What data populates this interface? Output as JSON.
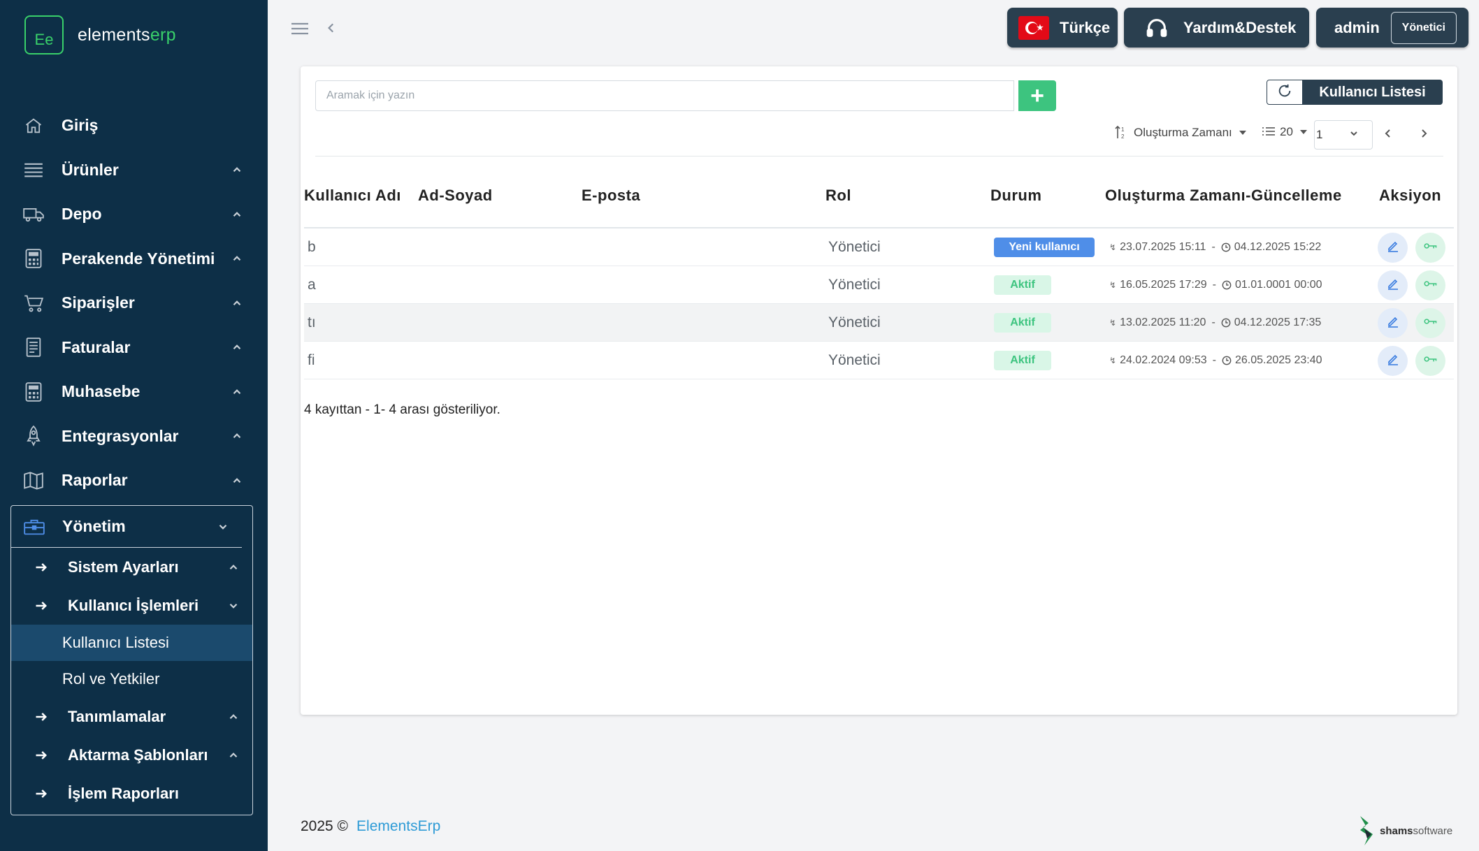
{
  "brand": {
    "logo_initials": "Ee",
    "name_main": "elements",
    "name_accent": "erp"
  },
  "sidebar": {
    "items": [
      {
        "label": "Giriş",
        "icon": "home-icon"
      },
      {
        "label": "Ürünler",
        "icon": "list-icon"
      },
      {
        "label": "Depo",
        "icon": "truck-icon"
      },
      {
        "label": "Perakende Yönetimi",
        "icon": "calculator-icon"
      },
      {
        "label": "Siparişler",
        "icon": "cart-icon"
      },
      {
        "label": "Faturalar",
        "icon": "invoice-icon"
      },
      {
        "label": "Muhasebe",
        "icon": "calculator-icon"
      },
      {
        "label": "Entegrasyonlar",
        "icon": "rocket-icon"
      },
      {
        "label": "Raporlar",
        "icon": "map-icon"
      }
    ],
    "group": {
      "label": "Yönetim",
      "sub": [
        {
          "label": "Sistem Ayarları"
        },
        {
          "label": "Kullanıcı İşlemleri"
        }
      ],
      "leaves": [
        {
          "label": "Kullanıcı Listesi",
          "active": true
        },
        {
          "label": "Rol ve Yetkiler"
        }
      ],
      "sub2": [
        {
          "label": "Tanımlamalar"
        },
        {
          "label": "Aktarma Şablonları"
        },
        {
          "label": "İşlem Raporları"
        }
      ]
    }
  },
  "topbar": {
    "language": "Türkçe",
    "help": "Yardım&Destek",
    "user": "admin",
    "role": "Yönetici"
  },
  "toolbar": {
    "search_placeholder": "Aramak için yazın",
    "add_label": "+",
    "list_label": "Kullanıcı Listesi",
    "sort_label": "Oluşturma Zamanı",
    "page_size": "20",
    "page": "1"
  },
  "table": {
    "headers": {
      "username": "Kullanıcı Adı",
      "fullname": "Ad-Soyad",
      "email": "E-posta",
      "role": "Rol",
      "status": "Durum",
      "dates": "Oluşturma Zamanı-Güncelleme",
      "actions": "Aksiyon"
    },
    "rows": [
      {
        "username": "b",
        "role": "Yönetici",
        "status": "Yeni kullanıcı",
        "created": "23.07.2025 15:11",
        "updated": "04.12.2025 15:22"
      },
      {
        "username": "a",
        "role": "Yönetici",
        "status": "Aktif",
        "created": "16.05.2025 17:29",
        "updated": "01.01.0001 00:00"
      },
      {
        "username": "tı",
        "role": "Yönetici",
        "status": "Aktif",
        "created": "13.02.2025 11:20",
        "updated": "04.12.2025 17:35"
      },
      {
        "username": "fi",
        "role": "Yönetici",
        "status": "Aktif",
        "created": "24.02.2024 09:53",
        "updated": "26.05.2025 23:40"
      }
    ],
    "summary": "4 kayıttan - 1- 4 arası gösteriliyor."
  },
  "footer": {
    "year": "2025 ©",
    "brand": "ElementsErp",
    "vendor_main": "shams",
    "vendor_light": "software"
  },
  "colors": {
    "sidebar": "#0d2f47",
    "accent_green": "#3dc47f",
    "accent_blue": "#4f8ee8",
    "dark_button": "#2a3f4f"
  }
}
